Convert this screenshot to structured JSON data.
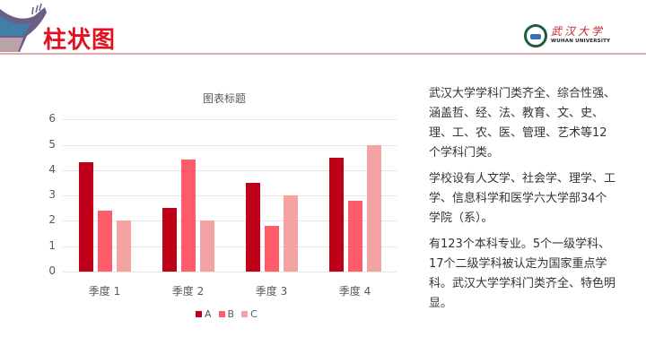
{
  "header": {
    "title": "柱状图",
    "logo_cn": "武汉大学",
    "logo_en": "WUHAN UNIVERSITY"
  },
  "colors": {
    "title": "#e0121f",
    "A": "#c00018",
    "B": "#ff5b6b",
    "C": "#f4a3a3",
    "divider": "#e3a9b0"
  },
  "chart_data": {
    "type": "bar",
    "title": "图表标题",
    "categories": [
      "季度 1",
      "季度 2",
      "季度 3",
      "季度 4"
    ],
    "series": [
      {
        "name": "A",
        "values": [
          4.3,
          2.5,
          3.5,
          4.5
        ]
      },
      {
        "name": "B",
        "values": [
          2.4,
          4.4,
          1.8,
          2.8
        ]
      },
      {
        "name": "C",
        "values": [
          2.0,
          2.0,
          3.0,
          5.0
        ]
      }
    ],
    "xlabel": "",
    "ylabel": "",
    "ylim": [
      0,
      6
    ],
    "yticks": [
      "0",
      "1",
      "2",
      "3",
      "4",
      "5",
      "6"
    ],
    "grid": true,
    "legend_position": "bottom"
  },
  "text": {
    "paragraphs": [
      "武汉大学学科门类齐全、综合性强、涵盖哲、经、法、教育、文、史、理、工、农、医、管理、艺术等12个学科门类。",
      "学校设有人文学、社会学、理学、工学、信息科学和医学六大学部34个学院（系）。",
      "有123个本科专业。5个一级学科、17个二级学科被认定为国家重点学科。武汉大学学科门类齐全、特色明显。"
    ]
  }
}
